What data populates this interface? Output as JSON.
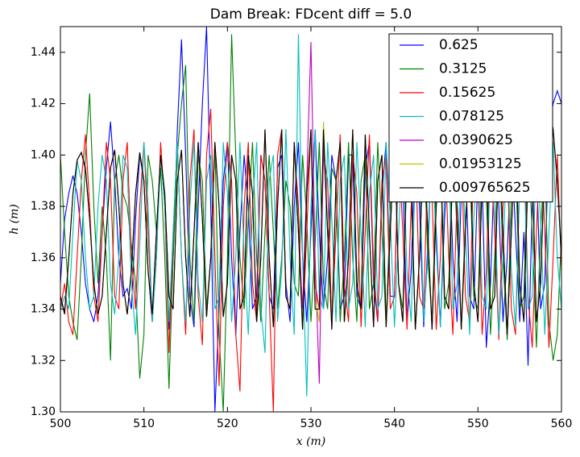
{
  "chart_data": {
    "type": "line",
    "title": "Dam Break: FDcent diff = 5.0",
    "xlabel": "x (m)",
    "ylabel": "h (m)",
    "xlim": [
      500,
      560
    ],
    "ylim": [
      1.3,
      1.45
    ],
    "xticks": [
      500,
      510,
      520,
      530,
      540,
      550,
      560
    ],
    "yticks": [
      {
        "value": 1.3,
        "label": "1.30"
      },
      {
        "value": 1.32,
        "label": "1.32"
      },
      {
        "value": 1.34,
        "label": "1.34"
      },
      {
        "value": 1.36,
        "label": "1.36"
      },
      {
        "value": 1.38,
        "label": "1.38"
      },
      {
        "value": 1.4,
        "label": "1.40"
      },
      {
        "value": 1.42,
        "label": "1.42"
      },
      {
        "value": 1.44,
        "label": "1.44"
      }
    ],
    "legend": "upper right",
    "x": [
      500,
      500.5,
      501,
      501.5,
      502,
      502.5,
      503,
      503.5,
      504,
      504.5,
      505,
      505.5,
      506,
      506.5,
      507,
      507.5,
      508,
      508.5,
      509,
      509.5,
      510,
      510.5,
      511,
      511.5,
      512,
      512.5,
      513,
      513.5,
      514,
      514.5,
      515,
      515.5,
      516,
      516.5,
      517,
      517.5,
      518,
      518.5,
      519,
      519.5,
      520,
      520.5,
      521,
      521.5,
      522,
      522.5,
      523,
      523.5,
      524,
      524.5,
      525,
      525.5,
      526,
      526.5,
      527,
      527.5,
      528,
      528.5,
      529,
      529.5,
      530,
      530.5,
      531,
      531.5,
      532,
      532.5,
      533,
      533.5,
      534,
      534.5,
      535,
      535.5,
      536,
      536.5,
      537,
      537.5,
      538,
      538.5,
      539,
      539.5,
      540,
      540.5,
      541,
      541.5,
      542,
      542.5,
      543,
      543.5,
      544,
      544.5,
      545,
      545.5,
      546,
      546.5,
      547,
      547.5,
      548,
      548.5,
      549,
      549.5,
      550,
      550.5,
      551,
      551.5,
      552,
      552.5,
      553,
      553.5,
      554,
      554.5,
      555,
      555.5,
      556,
      556.5,
      557,
      557.5,
      558,
      558.5,
      559,
      559.5,
      560
    ],
    "series": [
      {
        "name": "0.625",
        "color": "#0000ff",
        "values": [
          1.35,
          1.375,
          1.385,
          1.392,
          1.385,
          1.37,
          1.35,
          1.34,
          1.335,
          1.345,
          1.37,
          1.395,
          1.413,
          1.39,
          1.36,
          1.345,
          1.348,
          1.34,
          1.375,
          1.4,
          1.39,
          1.355,
          1.335,
          1.37,
          1.4,
          1.38,
          1.332,
          1.36,
          1.41,
          1.445,
          1.4,
          1.345,
          1.333,
          1.38,
          1.42,
          1.45,
          1.38,
          1.3,
          1.34,
          1.39,
          1.405,
          1.36,
          1.33,
          1.37,
          1.4,
          1.38,
          1.34,
          1.345,
          1.4,
          1.39,
          1.345,
          1.34,
          1.395,
          1.4,
          1.35,
          1.335,
          1.38,
          1.405,
          1.36,
          1.335,
          1.37,
          1.41,
          1.37,
          1.34,
          1.36,
          1.4,
          1.39,
          1.34,
          1.345,
          1.4,
          1.4,
          1.345,
          1.34,
          1.395,
          1.405,
          1.35,
          1.335,
          1.385,
          1.405,
          1.345,
          1.345,
          1.4,
          1.39,
          1.335,
          1.355,
          1.405,
          1.38,
          1.333,
          1.365,
          1.405,
          1.37,
          1.333,
          1.375,
          1.405,
          1.36,
          1.335,
          1.385,
          1.4,
          1.345,
          1.34,
          1.395,
          1.39,
          1.325,
          1.35,
          1.4,
          1.38,
          1.335,
          1.36,
          1.405,
          1.37,
          1.335,
          1.37,
          1.318,
          1.38,
          1.4,
          1.34,
          1.35,
          1.41,
          1.42,
          1.425,
          1.42
        ]
      },
      {
        "name": "0.3125",
        "color": "#008000",
        "values": [
          1.4,
          1.37,
          1.345,
          1.335,
          1.328,
          1.36,
          1.4,
          1.424,
          1.38,
          1.35,
          1.38,
          1.36,
          1.32,
          1.39,
          1.4,
          1.385,
          1.38,
          1.365,
          1.35,
          1.313,
          1.33,
          1.4,
          1.39,
          1.37,
          1.395,
          1.36,
          1.309,
          1.36,
          1.4,
          1.42,
          1.435,
          1.36,
          1.335,
          1.4,
          1.39,
          1.34,
          1.36,
          1.405,
          1.33,
          1.3,
          1.36,
          1.447,
          1.4,
          1.36,
          1.34,
          1.375,
          1.405,
          1.36,
          1.335,
          1.37,
          1.4,
          1.37,
          1.34,
          1.36,
          1.39,
          1.38,
          1.35,
          1.345,
          1.4,
          1.375,
          1.335,
          1.365,
          1.405,
          1.35,
          1.34,
          1.395,
          1.39,
          1.335,
          1.36,
          1.405,
          1.36,
          1.335,
          1.39,
          1.4,
          1.34,
          1.35,
          1.405,
          1.37,
          1.333,
          1.38,
          1.405,
          1.35,
          1.34,
          1.4,
          1.385,
          1.333,
          1.36,
          1.405,
          1.36,
          1.335,
          1.39,
          1.4,
          1.34,
          1.35,
          1.405,
          1.37,
          1.333,
          1.375,
          1.4,
          1.345,
          1.34,
          1.4,
          1.385,
          1.33,
          1.36,
          1.405,
          1.36,
          1.328,
          1.385,
          1.4,
          1.34,
          1.345,
          1.405,
          1.37,
          1.325,
          1.37,
          1.4,
          1.335,
          1.32,
          1.33,
          1.37
        ]
      },
      {
        "name": "0.15625",
        "color": "#ff0000",
        "values": [
          1.34,
          1.35,
          1.335,
          1.33,
          1.36,
          1.39,
          1.408,
          1.38,
          1.345,
          1.335,
          1.37,
          1.405,
          1.39,
          1.345,
          1.34,
          1.39,
          1.405,
          1.36,
          1.34,
          1.38,
          1.405,
          1.37,
          1.335,
          1.36,
          1.405,
          1.38,
          1.323,
          1.37,
          1.405,
          1.36,
          1.33,
          1.39,
          1.41,
          1.345,
          1.326,
          1.4,
          1.418,
          1.36,
          1.31,
          1.38,
          1.405,
          1.39,
          1.33,
          1.308,
          1.38,
          1.405,
          1.35,
          1.335,
          1.4,
          1.39,
          1.345,
          1.3,
          1.4,
          1.41,
          1.345,
          1.34,
          1.405,
          1.38,
          1.332,
          1.37,
          1.41,
          1.35,
          1.34,
          1.4,
          1.39,
          1.333,
          1.37,
          1.408,
          1.35,
          1.335,
          1.4,
          1.385,
          1.333,
          1.37,
          1.408,
          1.355,
          1.335,
          1.39,
          1.4,
          1.34,
          1.345,
          1.405,
          1.37,
          1.332,
          1.38,
          1.405,
          1.345,
          1.34,
          1.4,
          1.385,
          1.332,
          1.36,
          1.408,
          1.36,
          1.33,
          1.385,
          1.405,
          1.345,
          1.335,
          1.4,
          1.39,
          1.33,
          1.355,
          1.405,
          1.37,
          1.328,
          1.38,
          1.4,
          1.34,
          1.33,
          1.39,
          1.405,
          1.345,
          1.325,
          1.37,
          1.41,
          1.37,
          1.325,
          1.36,
          1.4,
          1.355
        ]
      },
      {
        "name": "0.078125",
        "color": "#00bfbf",
        "values": [
          1.34,
          1.345,
          1.34,
          1.37,
          1.398,
          1.39,
          1.36,
          1.34,
          1.345,
          1.38,
          1.4,
          1.39,
          1.35,
          1.338,
          1.36,
          1.4,
          1.395,
          1.35,
          1.33,
          1.365,
          1.405,
          1.38,
          1.335,
          1.36,
          1.4,
          1.38,
          1.335,
          1.37,
          1.405,
          1.36,
          1.335,
          1.38,
          1.405,
          1.35,
          1.335,
          1.39,
          1.4,
          1.34,
          1.345,
          1.405,
          1.385,
          1.335,
          1.36,
          1.405,
          1.36,
          1.33,
          1.38,
          1.405,
          1.34,
          1.323,
          1.39,
          1.4,
          1.335,
          1.355,
          1.41,
          1.36,
          1.33,
          1.447,
          1.36,
          1.306,
          1.38,
          1.41,
          1.345,
          1.34,
          1.405,
          1.375,
          1.335,
          1.39,
          1.4,
          1.34,
          1.35,
          1.405,
          1.37,
          1.333,
          1.385,
          1.4,
          1.34,
          1.345,
          1.405,
          1.375,
          1.333,
          1.37,
          1.405,
          1.355,
          1.335,
          1.395,
          1.395,
          1.335,
          1.36,
          1.405,
          1.365,
          1.333,
          1.385,
          1.4,
          1.34,
          1.35,
          1.405,
          1.37,
          1.33,
          1.375,
          1.4,
          1.345,
          1.34,
          1.4,
          1.385,
          1.33,
          1.36,
          1.405,
          1.355,
          1.333,
          1.39,
          1.4,
          1.34,
          1.345,
          1.405,
          1.375,
          1.33,
          1.37,
          1.405,
          1.36,
          1.34
        ]
      },
      {
        "name": "0.0390625",
        "color": "#bf00bf",
        "values": [
          1.345,
          1.339,
          1.36,
          1.385,
          1.398,
          1.401,
          1.394,
          1.375,
          1.35,
          1.338,
          1.345,
          1.37,
          1.395,
          1.402,
          1.38,
          1.35,
          1.338,
          1.355,
          1.385,
          1.401,
          1.39,
          1.355,
          1.338,
          1.37,
          1.4,
          1.385,
          1.345,
          1.34,
          1.39,
          1.402,
          1.36,
          1.337,
          1.37,
          1.405,
          1.375,
          1.337,
          1.36,
          1.405,
          1.38,
          1.337,
          1.35,
          1.4,
          1.39,
          1.34,
          1.345,
          1.4,
          1.385,
          1.335,
          1.36,
          1.41,
          1.36,
          1.333,
          1.38,
          1.41,
          1.345,
          1.34,
          1.405,
          1.37,
          1.34,
          1.39,
          1.444,
          1.36,
          1.311,
          1.405,
          1.37,
          1.332,
          1.39,
          1.405,
          1.335,
          1.36,
          1.41,
          1.35,
          1.34,
          1.408,
          1.37,
          1.333,
          1.39,
          1.4,
          1.333,
          1.37,
          1.408,
          1.35,
          1.335,
          1.4,
          1.39,
          1.332,
          1.36,
          1.408,
          1.37,
          1.332,
          1.38,
          1.405,
          1.345,
          1.34,
          1.4,
          1.38,
          1.332,
          1.37,
          1.408,
          1.35,
          1.335,
          1.39,
          1.4,
          1.34,
          1.345,
          1.405,
          1.37,
          1.33,
          1.37,
          1.41,
          1.35,
          1.335,
          1.395,
          1.395,
          1.335,
          1.35,
          1.4,
          1.419,
          1.41,
          1.39,
          1.36
        ]
      },
      {
        "name": "0.01953125",
        "color": "#bfbf00",
        "values": [
          1.345,
          1.338,
          1.36,
          1.385,
          1.398,
          1.401,
          1.395,
          1.375,
          1.35,
          1.338,
          1.345,
          1.37,
          1.395,
          1.402,
          1.38,
          1.35,
          1.338,
          1.355,
          1.385,
          1.401,
          1.39,
          1.355,
          1.338,
          1.37,
          1.4,
          1.385,
          1.345,
          1.34,
          1.39,
          1.402,
          1.36,
          1.337,
          1.37,
          1.405,
          1.375,
          1.337,
          1.36,
          1.405,
          1.38,
          1.337,
          1.35,
          1.4,
          1.39,
          1.34,
          1.345,
          1.4,
          1.385,
          1.335,
          1.36,
          1.41,
          1.36,
          1.333,
          1.38,
          1.41,
          1.345,
          1.34,
          1.405,
          1.37,
          1.332,
          1.385,
          1.41,
          1.345,
          1.335,
          1.413,
          1.37,
          1.332,
          1.39,
          1.405,
          1.335,
          1.36,
          1.41,
          1.35,
          1.34,
          1.408,
          1.37,
          1.333,
          1.39,
          1.4,
          1.333,
          1.37,
          1.408,
          1.35,
          1.335,
          1.4,
          1.39,
          1.332,
          1.36,
          1.408,
          1.37,
          1.332,
          1.38,
          1.405,
          1.345,
          1.34,
          1.4,
          1.38,
          1.332,
          1.37,
          1.408,
          1.35,
          1.335,
          1.39,
          1.4,
          1.34,
          1.345,
          1.405,
          1.37,
          1.33,
          1.37,
          1.41,
          1.35,
          1.335,
          1.395,
          1.395,
          1.335,
          1.35,
          1.4,
          1.419,
          1.41,
          1.39,
          1.36
        ]
      },
      {
        "name": "0.009765625",
        "color": "#000000",
        "values": [
          1.345,
          1.338,
          1.36,
          1.385,
          1.398,
          1.401,
          1.395,
          1.375,
          1.35,
          1.338,
          1.345,
          1.37,
          1.395,
          1.402,
          1.38,
          1.35,
          1.338,
          1.355,
          1.385,
          1.401,
          1.39,
          1.355,
          1.338,
          1.37,
          1.4,
          1.385,
          1.345,
          1.34,
          1.39,
          1.402,
          1.36,
          1.337,
          1.37,
          1.405,
          1.375,
          1.337,
          1.36,
          1.405,
          1.38,
          1.337,
          1.35,
          1.4,
          1.39,
          1.34,
          1.345,
          1.4,
          1.385,
          1.335,
          1.36,
          1.41,
          1.36,
          1.333,
          1.38,
          1.41,
          1.345,
          1.34,
          1.405,
          1.37,
          1.332,
          1.385,
          1.41,
          1.34,
          1.34,
          1.41,
          1.37,
          1.332,
          1.39,
          1.405,
          1.335,
          1.36,
          1.41,
          1.35,
          1.34,
          1.408,
          1.37,
          1.333,
          1.39,
          1.4,
          1.333,
          1.37,
          1.408,
          1.35,
          1.335,
          1.4,
          1.39,
          1.332,
          1.36,
          1.408,
          1.37,
          1.332,
          1.38,
          1.405,
          1.345,
          1.34,
          1.4,
          1.38,
          1.332,
          1.37,
          1.408,
          1.35,
          1.335,
          1.39,
          1.4,
          1.34,
          1.345,
          1.405,
          1.37,
          1.33,
          1.37,
          1.41,
          1.35,
          1.335,
          1.395,
          1.395,
          1.335,
          1.35,
          1.4,
          1.419,
          1.41,
          1.39,
          1.36
        ]
      }
    ]
  }
}
